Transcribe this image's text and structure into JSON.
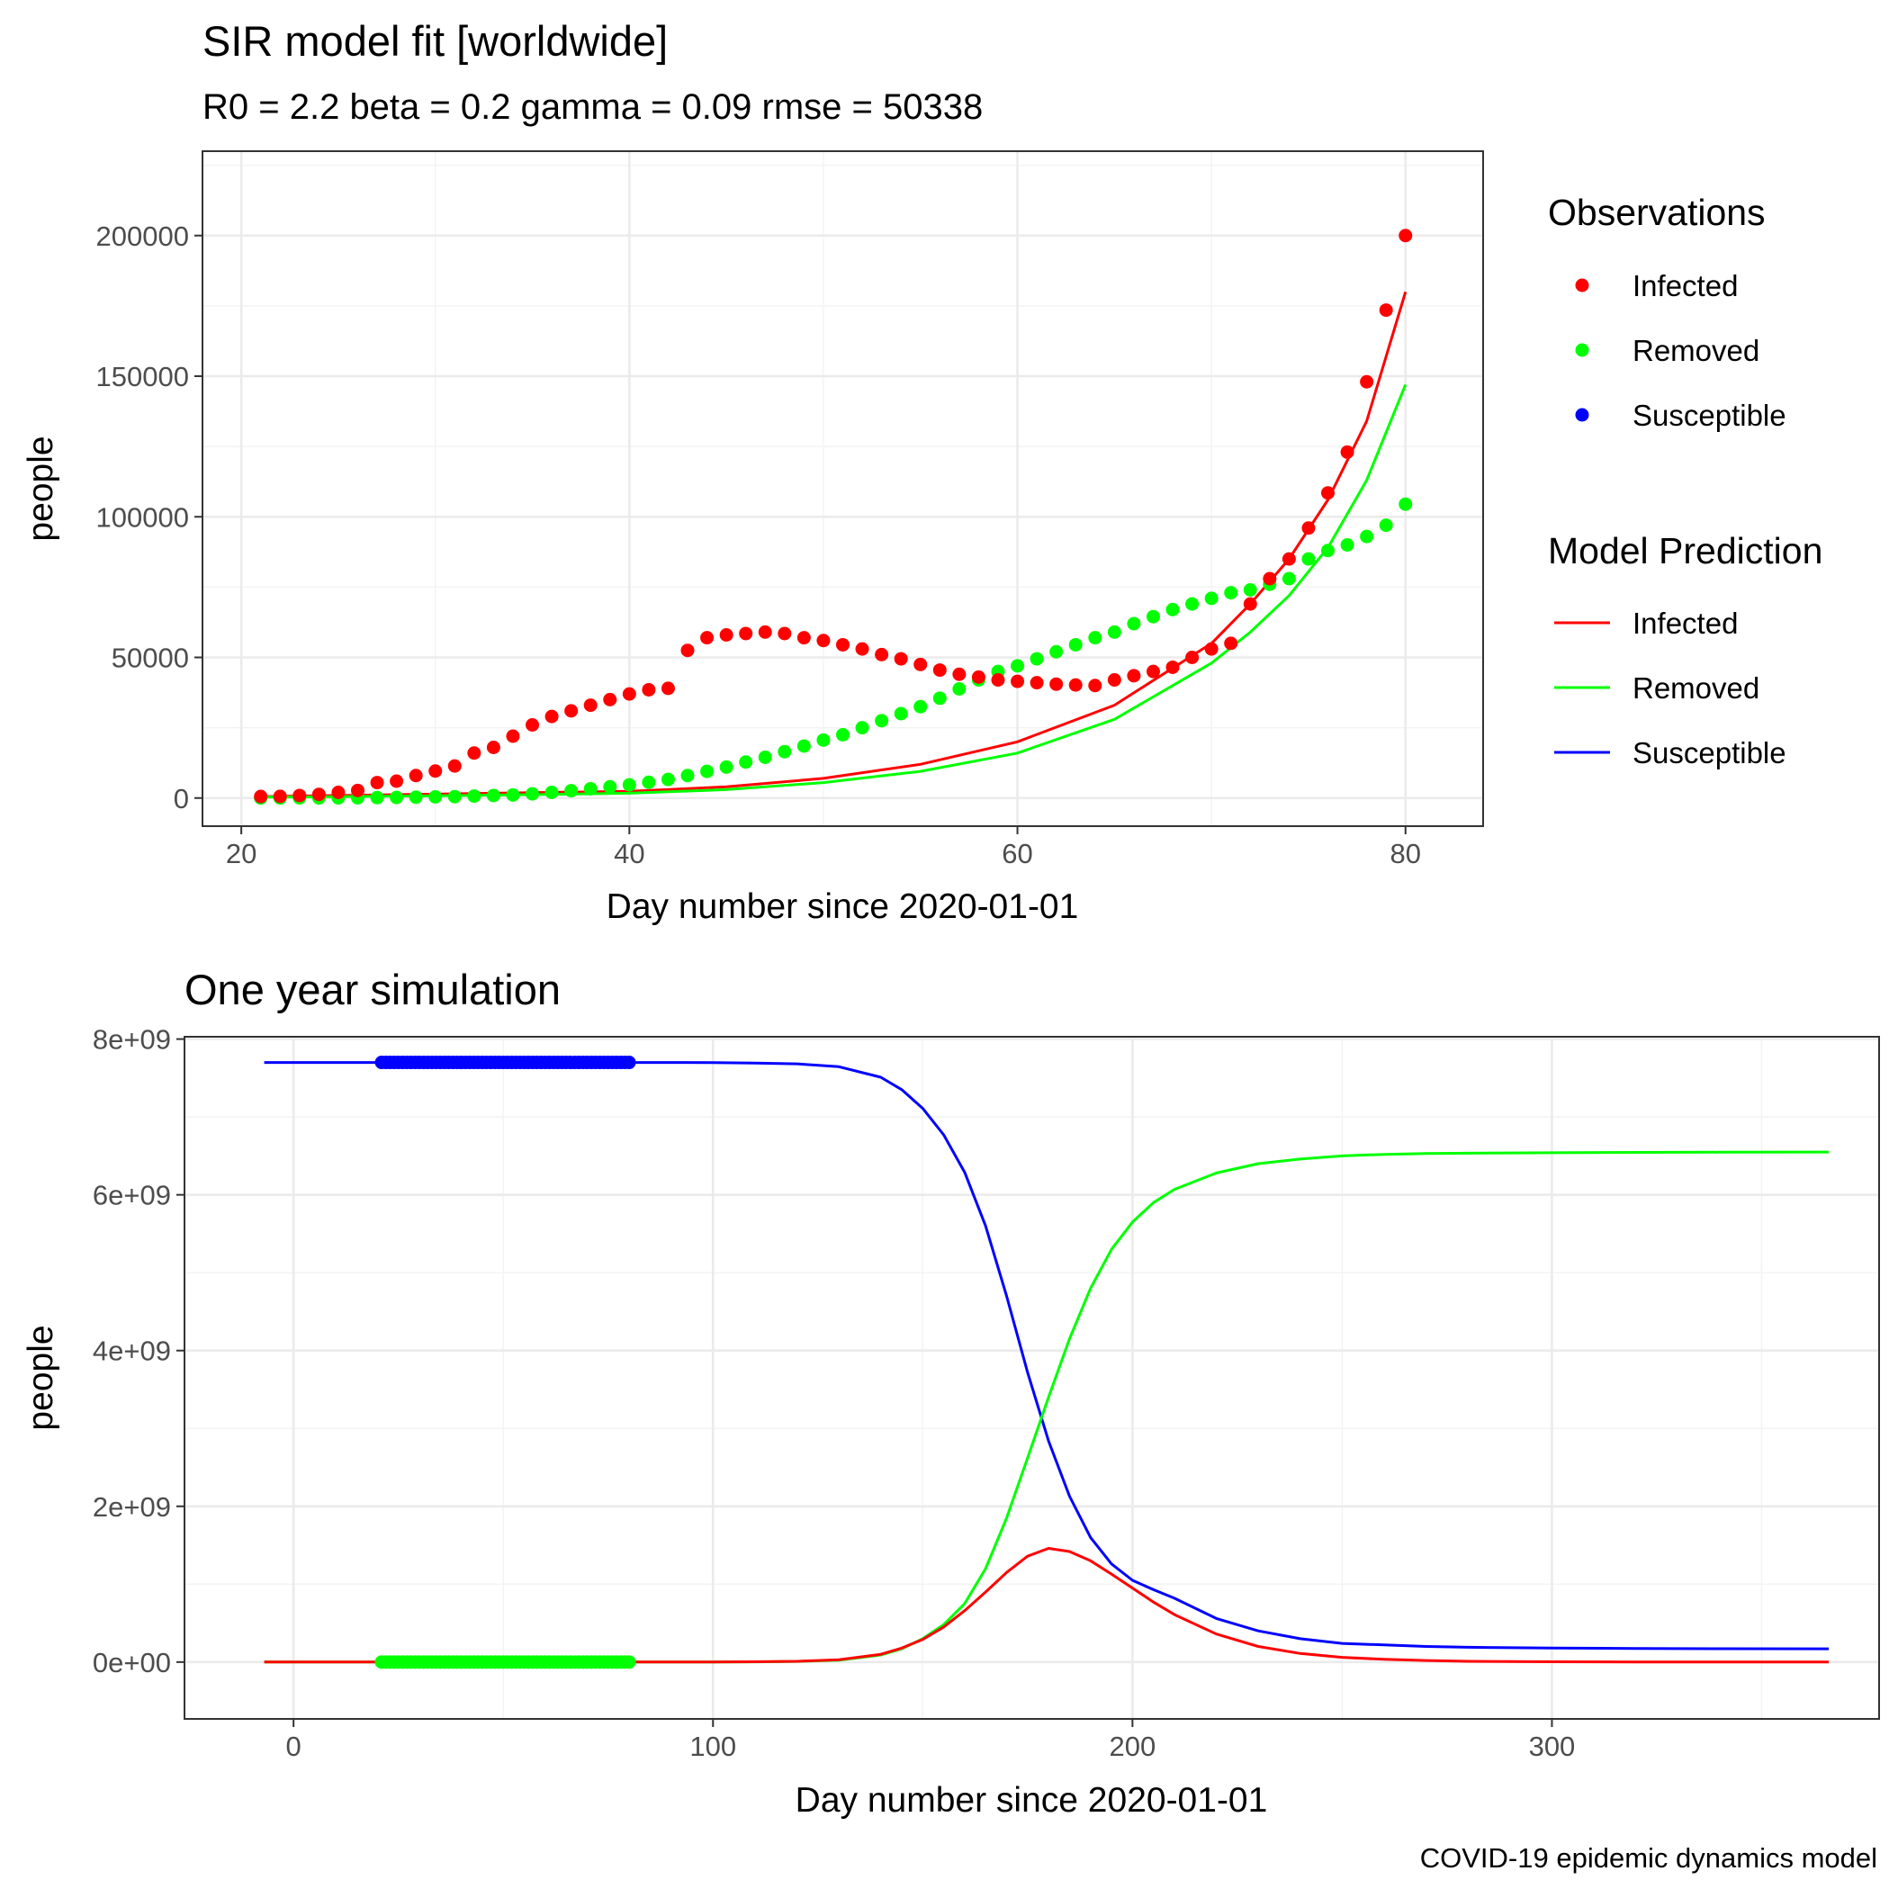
{
  "colors": {
    "infected": "#ff0000",
    "removed": "#00ff00",
    "susceptible": "#0000ff"
  },
  "caption": "COVID-19 epidemic dynamics model",
  "legend": {
    "observations_title": "Observations",
    "prediction_title": "Model Prediction",
    "items": [
      "Infected",
      "Removed",
      "Susceptible"
    ]
  },
  "chart_data": [
    {
      "type": "scatter",
      "title": "SIR model fit [worldwide]",
      "subtitle": "R0 = 2.2 beta = 0.2 gamma = 0.09 rmse = 50338",
      "xlabel": "Day number since 2020-01-01",
      "ylabel": "people",
      "xlim": [
        18,
        84
      ],
      "ylim": [
        -10000,
        230000
      ],
      "x_ticks": [
        20,
        40,
        60,
        80
      ],
      "x_tick_labels": [
        "20",
        "40",
        "60",
        "80"
      ],
      "y_ticks": [
        0,
        50000,
        100000,
        150000,
        200000
      ],
      "y_tick_labels": [
        "0",
        "50000",
        "100000",
        "150000",
        "200000"
      ],
      "grid": true,
      "legend_position": "right",
      "observations": {
        "x": [
          21,
          22,
          23,
          24,
          25,
          26,
          27,
          28,
          29,
          30,
          31,
          32,
          33,
          34,
          35,
          36,
          37,
          38,
          39,
          40,
          41,
          42,
          43,
          44,
          45,
          46,
          47,
          48,
          49,
          50,
          51,
          52,
          53,
          54,
          55,
          56,
          57,
          58,
          59,
          60,
          61,
          62,
          63,
          64,
          65,
          66,
          67,
          68,
          69,
          70,
          71,
          72,
          73,
          74,
          75,
          76,
          77,
          78,
          79,
          80
        ],
        "series": [
          {
            "name": "Infected",
            "values": [
              550,
              600,
              900,
              1300,
              2000,
              2700,
              5500,
              6000,
              8000,
              9600,
              11400,
              16000,
              18000,
              22000,
              26000,
              29000,
              31000,
              33000,
              35000,
              37000,
              38500,
              39000,
              52500,
              57000,
              58000,
              58500,
              59000,
              58500,
              57000,
              56000,
              54500,
              53000,
              51000,
              49500,
              47500,
              45500,
              44000,
              43000,
              42000,
              41500,
              41000,
              40500,
              40200,
              40000,
              42000,
              43500,
              45000,
              46500,
              50000,
              53000,
              55000,
              69000,
              78000,
              85000,
              96000,
              108500,
              123000,
              148000,
              173500,
              200000
            ]
          },
          {
            "name": "Removed",
            "values": [
              30,
              30,
              40,
              50,
              60,
              100,
              150,
              200,
              300,
              400,
              500,
              700,
              900,
              1100,
              1500,
              2000,
              2600,
              3300,
              4000,
              4700,
              5600,
              6600,
              8000,
              9500,
              11000,
              12800,
              14500,
              16500,
              18500,
              20600,
              22500,
              25000,
              27500,
              30000,
              32500,
              35500,
              38800,
              42000,
              45000,
              47000,
              49500,
              52000,
              54500,
              57000,
              59000,
              62000,
              64500,
              67000,
              69000,
              71000,
              73000,
              74000,
              76000,
              78000,
              85000,
              88000,
              90000,
              93000,
              97000,
              104500
            ]
          },
          {
            "name": "Susceptible",
            "values": []
          }
        ]
      },
      "model_prediction": {
        "x": [
          21,
          25,
          30,
          35,
          40,
          45,
          50,
          55,
          60,
          65,
          70,
          72,
          74,
          76,
          78,
          80
        ],
        "series": [
          {
            "name": "Infected",
            "values": [
              500,
              900,
              1400,
              1900,
              2400,
              4000,
              7000,
              12000,
              20000,
              33000,
              55000,
              69000,
              85000,
              106000,
              134000,
              180000
            ]
          },
          {
            "name": "Removed",
            "values": [
              300,
              500,
              800,
              1200,
              1700,
              3000,
              5500,
              9500,
              16000,
              28000,
              48000,
              59000,
              72000,
              89000,
              113000,
              147000
            ]
          },
          {
            "name": "Susceptible",
            "values": []
          }
        ]
      }
    },
    {
      "type": "line",
      "title": "One year simulation",
      "xlabel": "Day number since 2020-01-01",
      "ylabel": "people",
      "xlim": [
        -26,
        378
      ],
      "ylim": [
        -730000000.0,
        8030000000.0
      ],
      "x_ticks": [
        0,
        100,
        200,
        300
      ],
      "x_tick_labels": [
        "0",
        "100",
        "200",
        "300"
      ],
      "y_ticks": [
        0,
        2000000000,
        4000000000,
        6000000000,
        8000000000
      ],
      "y_tick_labels": [
        "0e+00",
        "2e+09",
        "4e+09",
        "6e+09",
        "8e+09"
      ],
      "grid": true,
      "simulation": {
        "x": [
          -7,
          0,
          20,
          40,
          60,
          80,
          100,
          110,
          120,
          130,
          140,
          145,
          150,
          155,
          160,
          165,
          170,
          175,
          180,
          185,
          190,
          195,
          200,
          205,
          210,
          220,
          230,
          240,
          250,
          260,
          270,
          280,
          300,
          320,
          340,
          366
        ],
        "series": [
          {
            "name": "Infected",
            "values": [
              0,
              0,
              0,
              0,
              0,
              0,
              1000000.0,
              4000000.0,
              10000000.0,
              30000000.0,
              100000000.0,
              180000000.0,
              290000000.0,
              450000000.0,
              660000000.0,
              900000000.0,
              1150000000.0,
              1360000000.0,
              1460000000.0,
              1420000000.0,
              1300000000.0,
              1130000000.0,
              950000000.0,
              770000000.0,
              610000000.0,
              360000000.0,
              200000000.0,
              110000000.0,
              60000000.0,
              35000000.0,
              20000000.0,
              10000000.0,
              4000000.0,
              2000000.0,
              1000000.0,
              500000.0
            ]
          },
          {
            "name": "Removed",
            "values": [
              0,
              0,
              0,
              0,
              0,
              0,
              1000000.0,
              3000000.0,
              8000000.0,
              25000000.0,
              90000000.0,
              170000000.0,
              300000000.0,
              480000000.0,
              750000000.0,
              1200000000.0,
              1850000000.0,
              2620000000.0,
              3400000000.0,
              4150000000.0,
              4800000000.0,
              5300000000.0,
              5650000000.0,
              5900000000.0,
              6070000000.0,
              6280000000.0,
              6400000000.0,
              6460000000.0,
              6500000000.0,
              6520000000.0,
              6530000000.0,
              6535000000.0,
              6540000000.0,
              6545000000.0,
              6547000000.0,
              6550000000.0
            ]
          },
          {
            "name": "Susceptible",
            "values": [
              7700000000.0,
              7700000000.0,
              7700000000.0,
              7700000000.0,
              7700000000.0,
              7700000000.0,
              7698000000.0,
              7693000000.0,
              7682000000.0,
              7645000000.0,
              7510000000.0,
              7350000000.0,
              7110000000.0,
              6770000000.0,
              6290000000.0,
              5600000000.0,
              4700000000.0,
              3720000000.0,
              2840000000.0,
              2130000000.0,
              1600000000.0,
              1260000000.0,
              1050000000.0,
              930000000.0,
              820000000.0,
              560000000.0,
              400000000.0,
              300000000.0,
              240000000.0,
              220000000.0,
              200000000.0,
              190000000.0,
              180000000.0,
              175000000.0,
              172000000.0,
              170000000.0
            ]
          }
        ]
      },
      "observations": {
        "x": [
          21,
          22,
          23,
          24,
          25,
          26,
          27,
          28,
          29,
          30,
          31,
          32,
          33,
          34,
          35,
          36,
          37,
          38,
          39,
          40,
          41,
          42,
          43,
          44,
          45,
          46,
          47,
          48,
          49,
          50,
          51,
          52,
          53,
          54,
          55,
          56,
          57,
          58,
          59,
          60,
          61,
          62,
          63,
          64,
          65,
          66,
          67,
          68,
          69,
          70,
          71,
          72,
          73,
          74,
          75,
          76,
          77,
          78,
          79,
          80
        ],
        "series": [
          {
            "name": "Susceptible",
            "value": 7700000000.0
          },
          {
            "name": "Removed",
            "value": 0
          }
        ]
      }
    }
  ]
}
